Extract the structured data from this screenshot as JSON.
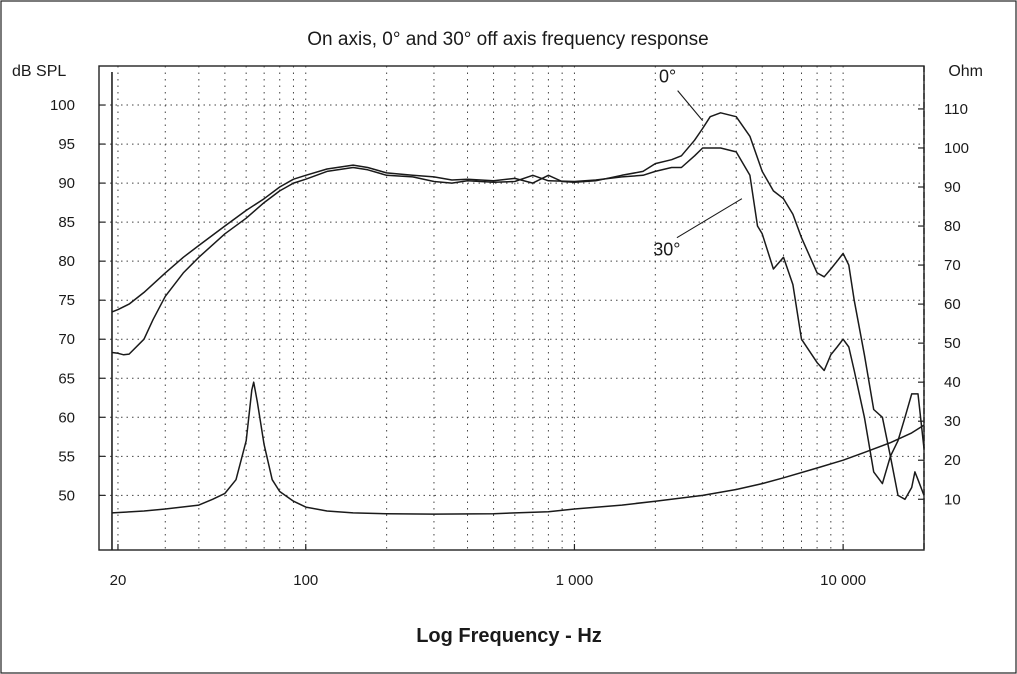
{
  "chart_data": {
    "type": "line",
    "title": "On axis, 0° and 30° off axis frequency response",
    "xlabel": "Log Frequency - Hz",
    "ylabel_left": "dB SPL",
    "ylabel_right": "Ohm",
    "x_scale": "log",
    "xlim": [
      17,
      20000
    ],
    "ylim_left": [
      43,
      105
    ],
    "ylim_right": [
      -3,
      121
    ],
    "grid": true,
    "x_tick_labels": [
      {
        "value": 20,
        "label": "20"
      },
      {
        "value": 100,
        "label": "100"
      },
      {
        "value": 1000,
        "label": "1 000"
      },
      {
        "value": 10000,
        "label": "10 000"
      }
    ],
    "y_left_ticks": [
      50,
      55,
      60,
      65,
      70,
      75,
      80,
      85,
      90,
      95,
      100
    ],
    "y_right_ticks": [
      10,
      20,
      30,
      40,
      50,
      60,
      70,
      80,
      90,
      100,
      110
    ],
    "annotations": [
      {
        "text": "0°",
        "series": "on-axis",
        "x": 3000,
        "y": 98
      },
      {
        "text": "30°",
        "series": "30-degree",
        "x": 4200,
        "y": 88
      }
    ],
    "series": [
      {
        "id": "on-axis",
        "axis": "left",
        "points": [
          [
            19,
            73.5
          ],
          [
            20,
            73.8
          ],
          [
            22,
            74.5
          ],
          [
            25,
            76
          ],
          [
            30,
            78.5
          ],
          [
            35,
            80.5
          ],
          [
            40,
            82
          ],
          [
            50,
            84.5
          ],
          [
            60,
            86.5
          ],
          [
            70,
            88
          ],
          [
            80,
            89.5
          ],
          [
            90,
            90.5
          ],
          [
            100,
            91
          ],
          [
            120,
            91.8
          ],
          [
            150,
            92.3
          ],
          [
            170,
            92
          ],
          [
            200,
            91.3
          ],
          [
            250,
            91
          ],
          [
            300,
            90.8
          ],
          [
            350,
            90.4
          ],
          [
            400,
            90.5
          ],
          [
            500,
            90.3
          ],
          [
            600,
            90.6
          ],
          [
            700,
            90
          ],
          [
            800,
            91
          ],
          [
            900,
            90.2
          ],
          [
            1000,
            90.1
          ],
          [
            1200,
            90.3
          ],
          [
            1500,
            91
          ],
          [
            1800,
            91.5
          ],
          [
            2000,
            92.5
          ],
          [
            2300,
            93
          ],
          [
            2500,
            93.5
          ],
          [
            2800,
            95.5
          ],
          [
            3000,
            97
          ],
          [
            3200,
            98.5
          ],
          [
            3500,
            99
          ],
          [
            4000,
            98.5
          ],
          [
            4500,
            96
          ],
          [
            5000,
            91.5
          ],
          [
            5500,
            89
          ],
          [
            6000,
            88
          ],
          [
            6500,
            86
          ],
          [
            7000,
            83
          ],
          [
            8000,
            78.5
          ],
          [
            8500,
            78
          ],
          [
            9000,
            79
          ],
          [
            9500,
            80
          ],
          [
            10000,
            81
          ],
          [
            10500,
            79.5
          ],
          [
            11000,
            75
          ],
          [
            12000,
            68
          ],
          [
            13000,
            61
          ],
          [
            14000,
            60
          ],
          [
            15000,
            55
          ],
          [
            16000,
            57
          ],
          [
            17000,
            60
          ],
          [
            18000,
            63
          ],
          [
            19000,
            63
          ],
          [
            20000,
            56
          ]
        ]
      },
      {
        "id": "30-degree",
        "axis": "left",
        "points": [
          [
            19,
            68.3
          ],
          [
            20,
            68.2
          ],
          [
            21,
            68
          ],
          [
            22,
            68.1
          ],
          [
            25,
            70
          ],
          [
            27,
            72.5
          ],
          [
            30,
            75.5
          ],
          [
            35,
            78.5
          ],
          [
            40,
            80.5
          ],
          [
            50,
            83.5
          ],
          [
            60,
            85.5
          ],
          [
            70,
            87.5
          ],
          [
            80,
            89
          ],
          [
            90,
            90
          ],
          [
            100,
            90.5
          ],
          [
            120,
            91.5
          ],
          [
            150,
            92
          ],
          [
            170,
            91.7
          ],
          [
            200,
            91
          ],
          [
            250,
            90.8
          ],
          [
            300,
            90.2
          ],
          [
            350,
            90
          ],
          [
            400,
            90.3
          ],
          [
            500,
            90.1
          ],
          [
            600,
            90.2
          ],
          [
            700,
            91
          ],
          [
            800,
            90.3
          ],
          [
            1000,
            90.2
          ],
          [
            1200,
            90.4
          ],
          [
            1500,
            90.8
          ],
          [
            1800,
            91
          ],
          [
            2000,
            91.5
          ],
          [
            2300,
            92
          ],
          [
            2500,
            92
          ],
          [
            2800,
            93.5
          ],
          [
            3000,
            94.5
          ],
          [
            3500,
            94.5
          ],
          [
            4000,
            94
          ],
          [
            4500,
            91
          ],
          [
            4800,
            84.5
          ],
          [
            5000,
            83.5
          ],
          [
            5500,
            79
          ],
          [
            6000,
            80.5
          ],
          [
            6500,
            77
          ],
          [
            7000,
            70
          ],
          [
            8000,
            67
          ],
          [
            8500,
            66
          ],
          [
            9000,
            68
          ],
          [
            9500,
            69
          ],
          [
            10000,
            70
          ],
          [
            10500,
            69
          ],
          [
            11000,
            66
          ],
          [
            12000,
            60
          ],
          [
            13000,
            53
          ],
          [
            14000,
            51.5
          ],
          [
            15000,
            55
          ],
          [
            16000,
            50
          ],
          [
            17000,
            49.5
          ],
          [
            18000,
            51
          ],
          [
            18500,
            53
          ],
          [
            19000,
            52
          ],
          [
            20000,
            50
          ]
        ]
      },
      {
        "id": "impedance",
        "axis": "right",
        "points": [
          [
            19,
            6.5
          ],
          [
            25,
            7
          ],
          [
            30,
            7.5
          ],
          [
            40,
            8.5
          ],
          [
            45,
            10
          ],
          [
            50,
            11.5
          ],
          [
            55,
            15
          ],
          [
            60,
            25
          ],
          [
            63,
            38
          ],
          [
            64,
            40
          ],
          [
            66,
            35
          ],
          [
            70,
            24
          ],
          [
            75,
            15
          ],
          [
            80,
            12
          ],
          [
            90,
            9.5
          ],
          [
            100,
            8
          ],
          [
            120,
            7
          ],
          [
            150,
            6.5
          ],
          [
            200,
            6.3
          ],
          [
            300,
            6.2
          ],
          [
            500,
            6.3
          ],
          [
            800,
            6.8
          ],
          [
            1000,
            7.5
          ],
          [
            1500,
            8.5
          ],
          [
            2000,
            9.5
          ],
          [
            3000,
            11
          ],
          [
            4000,
            12.5
          ],
          [
            5000,
            14
          ],
          [
            6000,
            15.5
          ],
          [
            8000,
            18
          ],
          [
            10000,
            20
          ],
          [
            12000,
            22
          ],
          [
            15000,
            24.5
          ],
          [
            18000,
            27
          ],
          [
            20000,
            29
          ]
        ]
      }
    ]
  }
}
